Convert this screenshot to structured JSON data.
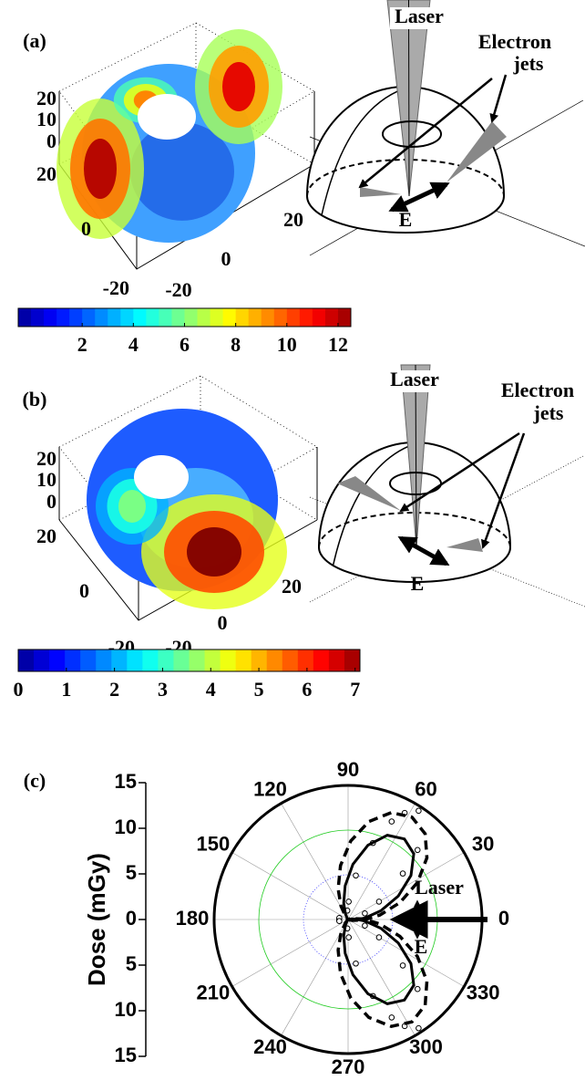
{
  "panels": [
    {
      "label": "(a)",
      "axis_ticks": {
        "z": [
          20,
          10,
          0
        ],
        "y": [
          20,
          0,
          -20
        ],
        "x": [
          -20,
          0,
          20
        ]
      },
      "colorbar": {
        "lim": [
          -0.5,
          12.5
        ],
        "ticks": [
          2,
          4,
          6,
          8,
          10,
          12
        ]
      },
      "diagram": {
        "laser": "Laser",
        "jets": [
          "Electron",
          "jets"
        ],
        "field": "E"
      }
    },
    {
      "label": "(b)",
      "axis_ticks": {
        "z": [
          20,
          10,
          0
        ],
        "y": [
          20,
          0,
          -20
        ],
        "x": [
          -20,
          0,
          20
        ]
      },
      "colorbar": {
        "lim": [
          0,
          7.1
        ],
        "ticks": [
          0,
          1,
          2,
          3,
          4,
          5,
          6,
          7
        ]
      },
      "diagram": {
        "laser": "Laser",
        "jets": [
          "Electron",
          "jets"
        ],
        "field": "E"
      }
    }
  ],
  "chart_data": {
    "type": "polar",
    "label": "(c)",
    "y_label": "Dose (mGy)",
    "ylim": [
      -15,
      15
    ],
    "yticks": [
      15,
      10,
      5,
      0,
      {
        "value": -5,
        "label": "5"
      },
      {
        "value": -10,
        "label": "10"
      },
      {
        "value": -15,
        "label": "15"
      }
    ],
    "rlim": [
      0,
      15
    ],
    "rticks": [
      5,
      10,
      15
    ],
    "ring_colors": [
      "#3030ff",
      "#22cc22",
      "#000000"
    ],
    "thetaticks": [
      0,
      30,
      60,
      90,
      120,
      150,
      180,
      210,
      240,
      270,
      300,
      330
    ],
    "annotations": [
      "Laser",
      "E"
    ],
    "series": [
      {
        "style": "markers",
        "color": "#000000",
        "theta": [
          57,
          62,
          66,
          72,
          80,
          88,
          95,
          45,
          40,
          30,
          20,
          303,
          298,
          294,
          288,
          280,
          272,
          265,
          315,
          320,
          330,
          340,
          180,
          170,
          190
        ],
        "r": [
          14.5,
          13.5,
          12,
          9,
          5,
          2,
          1,
          11,
          8,
          4,
          2,
          14.5,
          13.5,
          12,
          9,
          5,
          2,
          1,
          11,
          8,
          4,
          2,
          1,
          1,
          1
        ]
      },
      {
        "style": "solid",
        "color": "#000000",
        "theta": [
          335,
          345,
          355,
          5,
          15,
          25,
          35,
          45,
          55,
          65,
          75,
          85,
          95,
          105,
          115,
          125,
          135
        ],
        "r": [
          0,
          0.2,
          0.7,
          1.9,
          3.8,
          6.2,
          8.6,
          10.4,
          11,
          10.4,
          8.6,
          6.2,
          3.8,
          1.9,
          0.7,
          0.2,
          0
        ]
      },
      {
        "style": "solid",
        "color": "#000000",
        "theta": [
          225,
          235,
          245,
          255,
          265,
          275,
          285,
          295,
          305,
          315,
          325,
          335,
          345,
          355,
          5,
          15,
          25
        ],
        "r": [
          0,
          0.2,
          0.7,
          1.9,
          3.8,
          6.2,
          8.6,
          10.4,
          11,
          10.4,
          8.6,
          6.2,
          3.8,
          1.9,
          0.7,
          0.2,
          0
        ]
      },
      {
        "style": "dashed",
        "color": "#000000",
        "theta": [
          338,
          348,
          358,
          8,
          18,
          28,
          38,
          48,
          58,
          68,
          78,
          88,
          98,
          108,
          118,
          128,
          138
        ],
        "r": [
          0.1,
          0.5,
          1.7,
          3.6,
          6.1,
          8.8,
          11.2,
          12.9,
          13.5,
          12.9,
          11.2,
          8.8,
          6.1,
          3.6,
          1.7,
          0.5,
          0.1
        ]
      },
      {
        "style": "dashed",
        "color": "#000000",
        "theta": [
          222,
          232,
          242,
          252,
          262,
          272,
          282,
          292,
          302,
          312,
          322,
          332,
          342,
          352,
          2,
          12,
          22
        ],
        "r": [
          0.1,
          0.5,
          1.7,
          3.6,
          6.1,
          8.8,
          11.2,
          12.9,
          13.5,
          12.9,
          11.2,
          8.8,
          6.1,
          3.6,
          1.7,
          0.5,
          0.1
        ]
      }
    ]
  }
}
